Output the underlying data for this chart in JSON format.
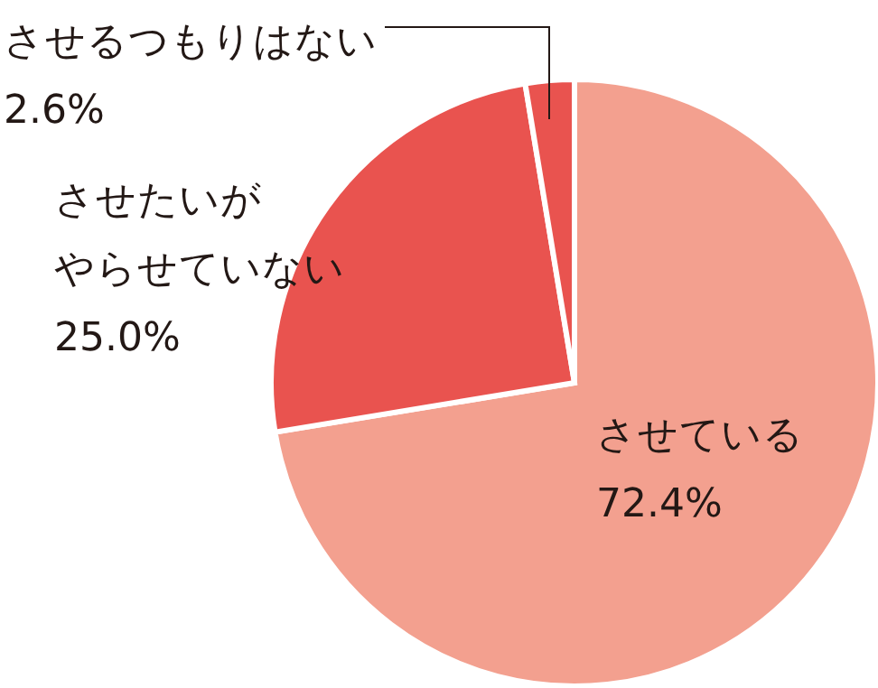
{
  "chart_data": {
    "type": "pie",
    "categories": [
      "させている",
      "させたいがやらせていない",
      "させるつもりはない"
    ],
    "values": [
      72.4,
      25.0,
      2.6
    ],
    "colors": [
      "#f3a08f",
      "#e9534f",
      "#e9534f"
    ],
    "value_labels": [
      "72.4%",
      "25.0%",
      "2.6%"
    ]
  }
}
